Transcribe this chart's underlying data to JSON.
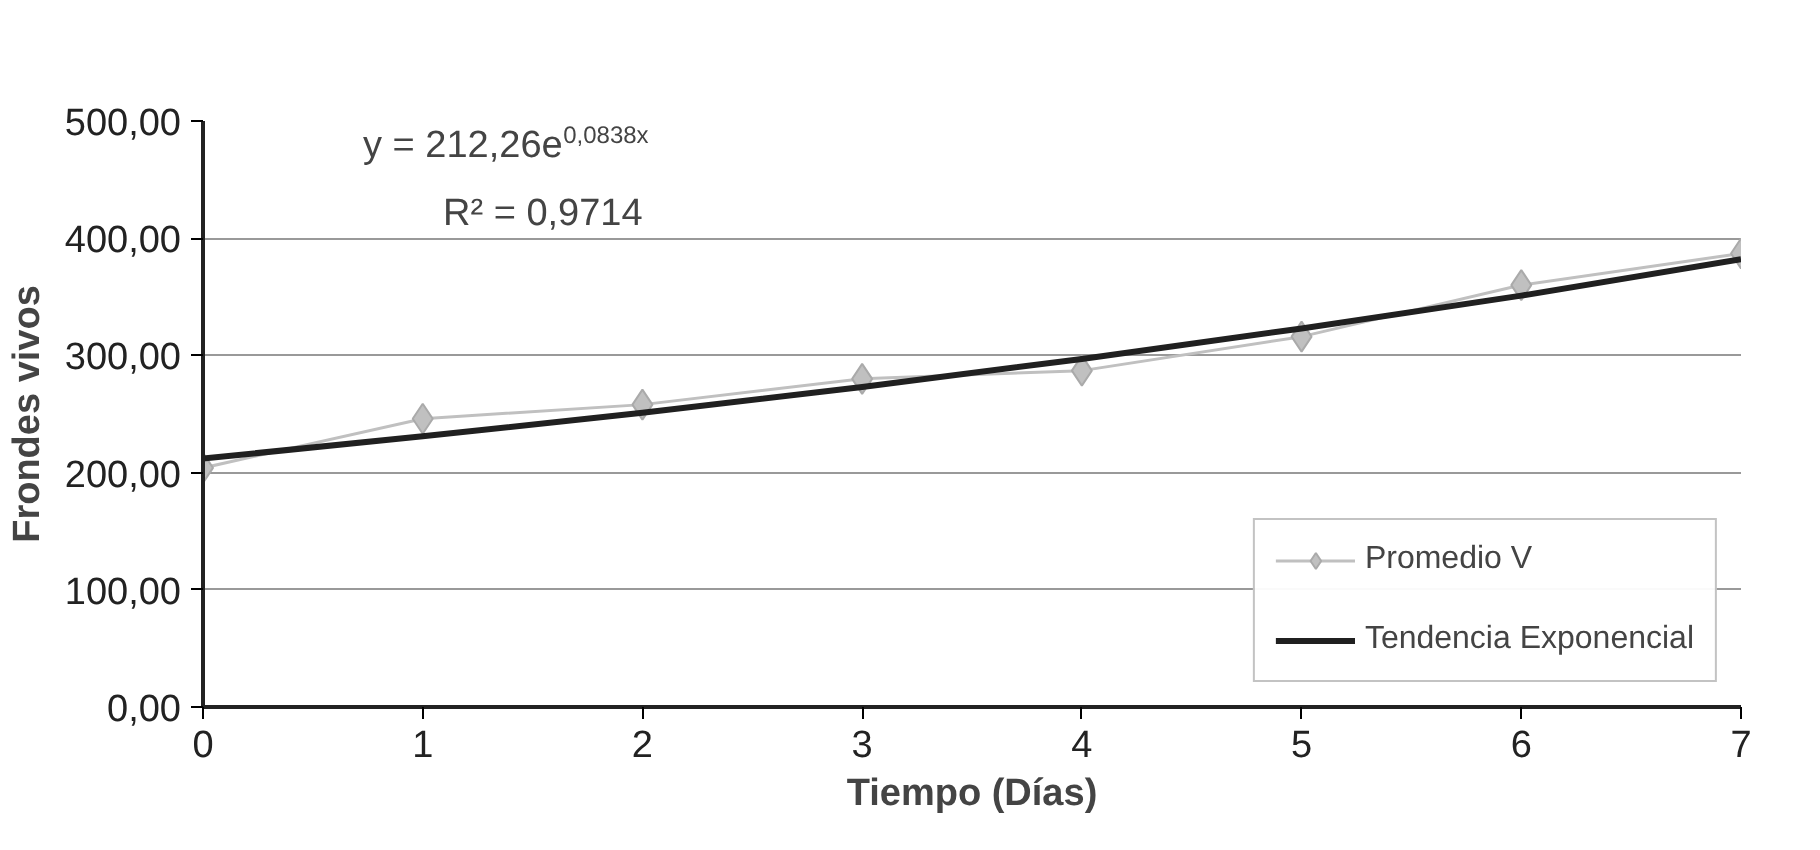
{
  "chart_data": {
    "type": "line",
    "xlabel": "Tiempo (Días)",
    "ylabel": "Frondes vivos",
    "x": [
      0,
      1,
      2,
      3,
      4,
      5,
      6,
      7
    ],
    "series": [
      {
        "name": "Promedio V",
        "color": "#c0c0c0",
        "marker": "diamond",
        "values": [
          204,
          246,
          258,
          280,
          287,
          316,
          360,
          387
        ]
      },
      {
        "name": "Tendencia Exponencial",
        "color": "#202020",
        "marker": "none",
        "values": [
          212,
          231,
          251,
          273,
          297,
          323,
          351,
          382
        ]
      }
    ],
    "annotations": [
      "y = 212,26e$^{0,0838x}$",
      "R² = 0,9714"
    ],
    "xlim": [
      0,
      7
    ],
    "xticks": [
      0,
      1,
      2,
      3,
      4,
      5,
      6,
      7
    ],
    "ylim": [
      0,
      500
    ],
    "yticks": [
      {
        "value": 0,
        "label": "0,00"
      },
      {
        "value": 100,
        "label": "100,00"
      },
      {
        "value": 200,
        "label": "200,00"
      },
      {
        "value": 300,
        "label": "300,00"
      },
      {
        "value": 400,
        "label": "400,00"
      },
      {
        "value": 500,
        "label": "500,00"
      }
    ],
    "grid": "y",
    "legend": "bottom right"
  }
}
